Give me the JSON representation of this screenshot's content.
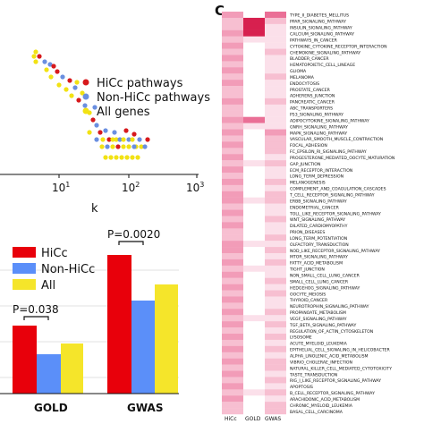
{
  "panel_c_letter": "C",
  "scatter": {
    "legend": [
      "HiCc pathways",
      "Non-HiCc pathways",
      "All genes"
    ],
    "colors": [
      "#d7191c",
      "#6a8fe0",
      "#f2e213"
    ],
    "x_axis_label": "k",
    "x_ticks": [
      "10",
      "10",
      "10"
    ],
    "x_tick_exponents": [
      "1",
      "2",
      "3"
    ]
  },
  "bars": {
    "legend": [
      "HiCc",
      "Non-HiCc",
      "All"
    ],
    "colors": [
      "#e8000b",
      "#5b8ff9",
      "#f5e52a"
    ],
    "annotations": [
      "P=0.0020",
      "P=0.038"
    ]
  },
  "heatmap": {
    "pathways": [
      "TYPE_II_DIABETES_MELLITUS",
      "PPAR_SIGNALING_PATHWAY",
      "INSULIN_SIGNALING_PATHWAY",
      "CALCIUM_SIGNALING_PATHWAY",
      "PATHWAYS_IN_CANCER",
      "CYTOKINE_CYTOKINE_RECEPTOR_INTERACTION",
      "CHEMOKINE_SIGNALING_PATHWAY",
      "BLADDER_CANCER",
      "HEMATOPOIETIC_CELL_LINEAGE",
      "GLIOMA",
      "MELANOMA",
      "ENDOCYTOSIS",
      "PROSTATE_CANCER",
      "ADHERENS_JUNCTION",
      "PANCREATIC_CANCER",
      "ABC_TRANSPORTERS",
      "P53_SIGNALING_PATHWAY",
      "ADIPOCYTOKINE_SIGNALING_PATHWAY",
      "GNRH_SIGNALING_PATHWAY",
      "MAPK_SIGNALING_PATHWAY",
      "VASCULAR_SMOOTH_MUSCLE_CONTRACTION",
      "FOCAL_ADHESION",
      "FC_EPSILON_RI_SIGNALING_PATHWAY",
      "PROGESTERONE_MEDIATED_OOCYTE_MATURATION",
      "GAP_JUNCTION",
      "ECM_RECEPTOR_INTERACTION",
      "LONG_TERM_DEPRESSION",
      "MELANOGENESIS",
      "COMPLEMENT_AND_COAGULATION_CASCADES",
      "T_CELL_RECEPTOR_SIGNALING_PATHWAY",
      "ERBB_SIGNALING_PATHWAY",
      "ENDOMETRIAL_CANCER",
      "TOLL_LIKE_RECEPTOR_SIGNALING_PATHWAY",
      "WNT_SIGNALING_PATHWAY",
      "DILATED_CARDIOMYOPATHY",
      "PRION_DISEASES",
      "LONG_TERM_POTENTIATION",
      "OLFACTORY_TRANSDUCTION",
      "NOD_LIKE_RECEPTOR_SIGNALING_PATHWAY",
      "MTOR_SIGNALING_PATHWAY",
      "FATTY_ACID_METABOLISM",
      "TIGHT_JUNCTION",
      "NON_SMALL_CELL_LUNG_CANCER",
      "SMALL_CELL_LUNG_CANCER",
      "HEDGEHOG_SIGNALING_PATHWAY",
      "OOCYTE_MEIOSIS",
      "THYROID_CANCER",
      "NEUROTROPHIN_SIGNALING_PATHWAY",
      "PROPANOATE_METABOLISM",
      "VEGF_SIGNALING_PATHWAY",
      "TGF_BETA_SIGNALING_PATHWAY",
      "REGULATION_OF_ACTIN_CYTOSKELETON",
      "LYSOSOME",
      "ACUTE_MYELOID_LEUKEMIA",
      "EPITHELIAL_CELL_SIGNALING_IN_HELICOBACTER",
      "ALPHA_LINOLENIC_ACID_METABOLISM",
      "VIBRIO_CHOLERAE_INFECTION",
      "NATURAL_KILLER_CELL_MEDIATED_CYTOTOXICITY",
      "TASTE_TRANSDUCTION",
      "RIG_I_LIKE_RECEPTOR_SIGNALING_PATHWAY",
      "APOPTOSIS",
      "B_CELL_RECEPTOR_SIGNALING_PATHWAY",
      "ARACHIDONIC_ACID_METABOLISM",
      "CHRONIC_MYELOID_LEUKEMIA",
      "BASAL_CELL_CARCINOMA"
    ],
    "columns": [
      "HiCc",
      "GOLD",
      "GWAS"
    ]
  }
}
